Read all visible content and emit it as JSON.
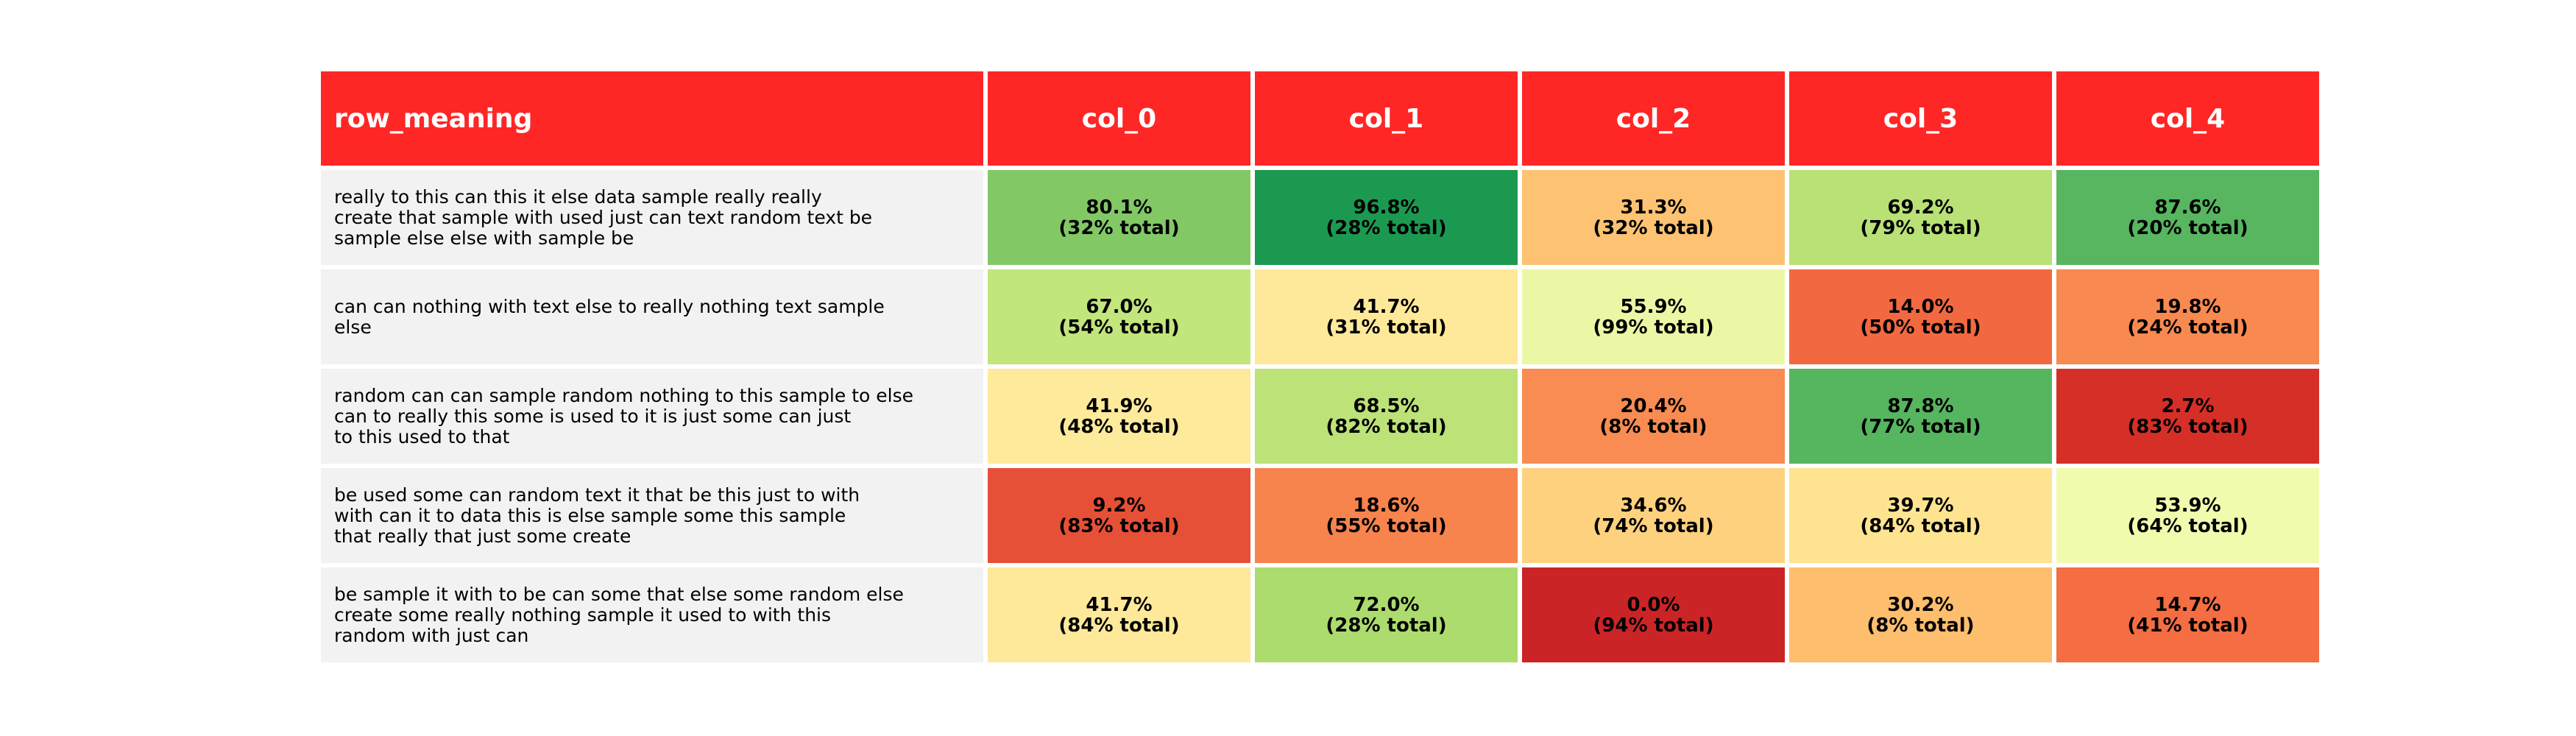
{
  "chart_data": {
    "type": "table",
    "header": {
      "label_column": "row_meaning",
      "columns": [
        "col_0",
        "col_1",
        "col_2",
        "col_3",
        "col_4"
      ]
    },
    "colors": {
      "header_bg": "#ff2626",
      "header_text": "#ffffff",
      "label_bg": "#f2f2f2",
      "colormap": "RdYlGn",
      "value_range": [
        0,
        100
      ]
    },
    "rows": [
      {
        "label": "really to this can this it else data sample really really\ncreate that sample with used just can text random text be\nsample else else with sample be",
        "cells": [
          {
            "percent": "80.1%",
            "total": "(32% total)",
            "value": 80.1
          },
          {
            "percent": "96.8%",
            "total": "(28% total)",
            "value": 96.8
          },
          {
            "percent": "31.3%",
            "total": "(32% total)",
            "value": 31.3
          },
          {
            "percent": "69.2%",
            "total": "(79% total)",
            "value": 69.2
          },
          {
            "percent": "87.6%",
            "total": "(20% total)",
            "value": 87.6
          }
        ]
      },
      {
        "label": "can can nothing with text else to really nothing text sample\nelse",
        "cells": [
          {
            "percent": "67.0%",
            "total": "(54% total)",
            "value": 67.0
          },
          {
            "percent": "41.7%",
            "total": "(31% total)",
            "value": 41.7
          },
          {
            "percent": "55.9%",
            "total": "(99% total)",
            "value": 55.9
          },
          {
            "percent": "14.0%",
            "total": "(50% total)",
            "value": 14.0
          },
          {
            "percent": "19.8%",
            "total": "(24% total)",
            "value": 19.8
          }
        ]
      },
      {
        "label": "random can can sample random nothing to this sample to else\ncan to really this some is used to it is just some can just\nto this used to that",
        "cells": [
          {
            "percent": "41.9%",
            "total": "(48% total)",
            "value": 41.9
          },
          {
            "percent": "68.5%",
            "total": "(82% total)",
            "value": 68.5
          },
          {
            "percent": "20.4%",
            "total": "(8% total)",
            "value": 20.4
          },
          {
            "percent": "87.8%",
            "total": "(77% total)",
            "value": 87.8
          },
          {
            "percent": "2.7%",
            "total": "(83% total)",
            "value": 2.7
          }
        ]
      },
      {
        "label": "be used some can random text it that be this just to with\nwith can it to data this is else sample some this sample\nthat really that just some create",
        "cells": [
          {
            "percent": "9.2%",
            "total": "(83% total)",
            "value": 9.2
          },
          {
            "percent": "18.6%",
            "total": "(55% total)",
            "value": 18.6
          },
          {
            "percent": "34.6%",
            "total": "(74% total)",
            "value": 34.6
          },
          {
            "percent": "39.7%",
            "total": "(84% total)",
            "value": 39.7
          },
          {
            "percent": "53.9%",
            "total": "(64% total)",
            "value": 53.9
          }
        ]
      },
      {
        "label": "be sample it with to be can some that else some random else\ncreate some really nothing sample it used to with this\nrandom with just can",
        "cells": [
          {
            "percent": "41.7%",
            "total": "(84% total)",
            "value": 41.7
          },
          {
            "percent": "72.0%",
            "total": "(28% total)",
            "value": 72.0
          },
          {
            "percent": "0.0%",
            "total": "(94% total)",
            "value": 0.0
          },
          {
            "percent": "30.2%",
            "total": "(8% total)",
            "value": 30.2
          },
          {
            "percent": "14.7%",
            "total": "(41% total)",
            "value": 14.7
          }
        ]
      }
    ]
  }
}
